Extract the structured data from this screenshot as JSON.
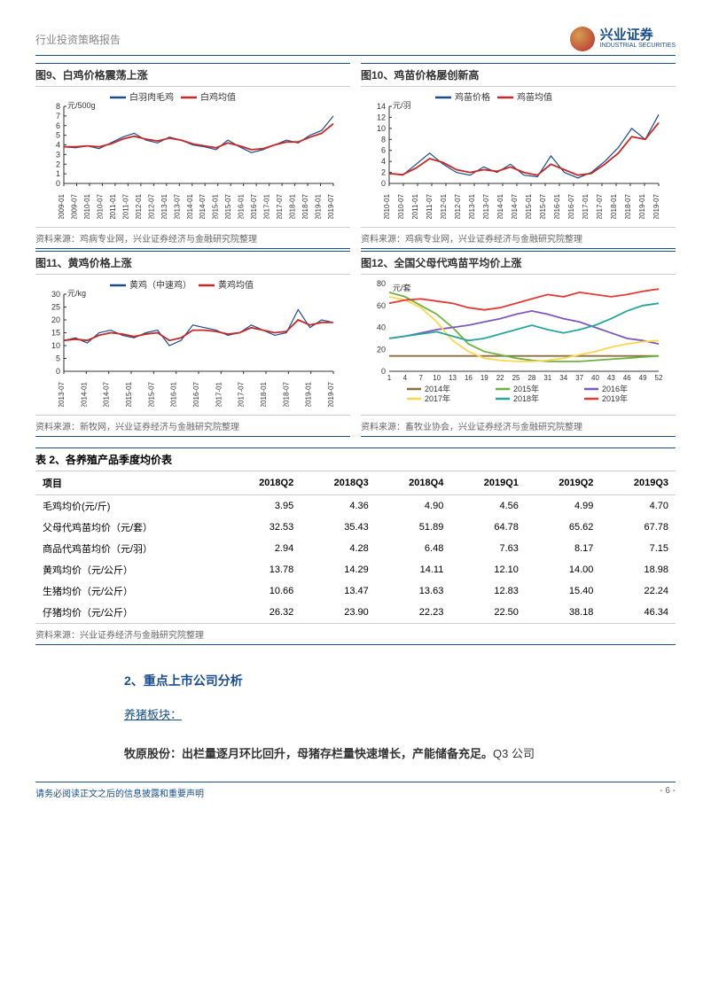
{
  "header": {
    "title": "行业投资策略报告",
    "logo_cn": "兴业证券",
    "logo_en": "INDUSTRIAL SECURITIES"
  },
  "fig9": {
    "title": "图9、白鸡价格震荡上涨",
    "legend": [
      {
        "label": "白羽肉毛鸡",
        "color": "#1a4d8c"
      },
      {
        "label": "白鸡均值",
        "color": "#c82828"
      }
    ],
    "y_unit": "元/500g",
    "ylim": [
      0,
      8
    ],
    "ytick_step": 1,
    "x_labels": [
      "2009-01",
      "2009-07",
      "2010-01",
      "2010-07",
      "2011-01",
      "2011-07",
      "2012-01",
      "2012-07",
      "2013-01",
      "2013-07",
      "2014-01",
      "2014-07",
      "2015-01",
      "2015-07",
      "2016-01",
      "2016-07",
      "2017-01",
      "2017-07",
      "2018-01",
      "2018-07",
      "2019-01",
      "2019-07"
    ],
    "series1": [
      3.8,
      3.7,
      3.9,
      3.6,
      4.2,
      4.8,
      5.2,
      4.5,
      4.2,
      4.8,
      4.5,
      4.0,
      3.8,
      3.5,
      4.5,
      3.8,
      3.2,
      3.5,
      4.0,
      4.5,
      4.2,
      5.0,
      5.5,
      7.0
    ],
    "series2": [
      3.8,
      3.8,
      3.9,
      3.8,
      4.1,
      4.6,
      4.9,
      4.6,
      4.4,
      4.7,
      4.5,
      4.1,
      3.9,
      3.7,
      4.2,
      3.9,
      3.5,
      3.6,
      4.0,
      4.3,
      4.3,
      4.8,
      5.2,
      6.2
    ],
    "source": "资料来源：鸡病专业网，兴业证券经济与金融研究院整理"
  },
  "fig10": {
    "title": "图10、鸡苗价格屡创新高",
    "legend": [
      {
        "label": "鸡苗价格",
        "color": "#1a4d8c"
      },
      {
        "label": "鸡苗均值",
        "color": "#c82828"
      }
    ],
    "y_unit": "元/羽",
    "ylim": [
      0,
      14
    ],
    "ytick_step": 2,
    "x_labels": [
      "2010-01",
      "2010-07",
      "2011-01",
      "2011-07",
      "2012-01",
      "2012-07",
      "2013-01",
      "2013-07",
      "2014-01",
      "2014-07",
      "2015-01",
      "2015-07",
      "2016-01",
      "2016-07",
      "2017-01",
      "2017-07",
      "2018-01",
      "2018-07",
      "2019-01",
      "2019-07"
    ],
    "series1": [
      1.8,
      1.5,
      3.5,
      5.5,
      3.5,
      2.0,
      1.5,
      3.0,
      2.0,
      3.5,
      1.5,
      1.2,
      5.0,
      2.0,
      1.0,
      2.0,
      4.0,
      6.5,
      10.0,
      8.0,
      12.5
    ],
    "series2": [
      1.8,
      1.6,
      2.8,
      4.5,
      3.8,
      2.5,
      2.0,
      2.5,
      2.2,
      3.0,
      2.0,
      1.5,
      3.5,
      2.5,
      1.5,
      1.8,
      3.5,
      5.5,
      8.5,
      8.0,
      11.0
    ],
    "source": "资料来源：鸡病专业网，兴业证券经济与金融研究院整理"
  },
  "fig11": {
    "title": "图11、黄鸡价格上涨",
    "legend": [
      {
        "label": "黄鸡（中速鸡）",
        "color": "#1a4d8c"
      },
      {
        "label": "黄鸡均值",
        "color": "#c82828"
      }
    ],
    "y_unit": "元/kg",
    "ylim": [
      0,
      30
    ],
    "ytick_step": 5,
    "x_labels": [
      "2013-07",
      "2014-01",
      "2014-07",
      "2015-01",
      "2015-07",
      "2016-01",
      "2016-07",
      "2017-01",
      "2017-07",
      "2018-01",
      "2018-07",
      "2019-01",
      "2019-07"
    ],
    "series1": [
      12,
      13,
      11,
      15,
      16,
      14,
      13,
      15,
      16,
      10,
      12,
      18,
      17,
      16,
      14,
      15,
      18,
      16,
      14,
      15,
      24,
      17,
      20,
      19
    ],
    "series2": [
      12,
      12.5,
      12,
      14,
      15,
      14.5,
      13.5,
      14.5,
      15,
      12,
      13,
      16,
      16,
      15.5,
      14.5,
      15,
      17,
      16,
      15,
      15.5,
      20,
      18,
      19,
      19
    ],
    "source": "资料来源：新牧网，兴业证券经济与金融研究院整理"
  },
  "fig12": {
    "title": "图12、全国父母代鸡苗平均价上涨",
    "y_unit": "元/套",
    "ylim": [
      0,
      80
    ],
    "ytick_step": 20,
    "x_labels": [
      "1",
      "4",
      "7",
      "10",
      "13",
      "16",
      "19",
      "22",
      "25",
      "28",
      "31",
      "34",
      "37",
      "40",
      "43",
      "46",
      "49",
      "52"
    ],
    "series": [
      {
        "label": "2014年",
        "color": "#8b6f3e",
        "data": [
          14,
          14,
          14,
          14,
          14,
          14,
          14,
          14,
          14,
          14,
          14,
          14,
          14,
          14,
          14,
          14,
          14,
          14
        ]
      },
      {
        "label": "2015年",
        "color": "#6db33f",
        "data": [
          72,
          68,
          60,
          52,
          40,
          25,
          18,
          15,
          12,
          10,
          9,
          9,
          9,
          10,
          11,
          12,
          13,
          14
        ]
      },
      {
        "label": "2016年",
        "color": "#7e57c2",
        "data": [
          30,
          32,
          35,
          38,
          40,
          42,
          45,
          48,
          52,
          55,
          52,
          48,
          45,
          40,
          35,
          30,
          28,
          25
        ]
      },
      {
        "label": "2017年",
        "color": "#ffd54f",
        "data": [
          68,
          65,
          58,
          45,
          28,
          18,
          12,
          10,
          9,
          9,
          10,
          12,
          15,
          18,
          22,
          25,
          27,
          28
        ]
      },
      {
        "label": "2018年",
        "color": "#26a69a",
        "data": [
          30,
          32,
          34,
          36,
          32,
          28,
          30,
          34,
          38,
          42,
          38,
          35,
          38,
          42,
          48,
          55,
          60,
          62
        ]
      },
      {
        "label": "2019年",
        "color": "#e53935",
        "data": [
          62,
          65,
          66,
          64,
          62,
          58,
          56,
          58,
          62,
          66,
          70,
          68,
          72,
          70,
          68,
          70,
          73,
          75
        ]
      }
    ],
    "source": "资料来源：畜牧业协会，兴业证券经济与金融研究院整理"
  },
  "table2": {
    "title": "表 2、各养殖产品季度均价表",
    "columns": [
      "项目",
      "2018Q2",
      "2018Q3",
      "2018Q4",
      "2019Q1",
      "2019Q2",
      "2019Q3"
    ],
    "rows": [
      [
        "毛鸡均价(元/斤)",
        "3.95",
        "4.36",
        "4.90",
        "4.56",
        "4.99",
        "4.70"
      ],
      [
        "父母代鸡苗均价（元/套）",
        "32.53",
        "35.43",
        "51.89",
        "64.78",
        "65.62",
        "67.78"
      ],
      [
        "商品代鸡苗均价（元/羽）",
        "2.94",
        "4.28",
        "6.48",
        "7.63",
        "8.17",
        "7.15"
      ],
      [
        "黄鸡均价（元/公斤）",
        "13.78",
        "14.29",
        "14.11",
        "12.10",
        "14.00",
        "18.98"
      ],
      [
        "生猪均价（元/公斤）",
        "10.66",
        "13.47",
        "13.63",
        "12.83",
        "15.40",
        "22.24"
      ],
      [
        "仔猪均价（元/公斤）",
        "26.32",
        "23.90",
        "22.23",
        "22.50",
        "38.18",
        "46.34"
      ]
    ],
    "source": "资料来源：兴业证券经济与金融研究院整理"
  },
  "section2": {
    "heading": "2、重点上市公司分析",
    "sub": "养猪板块：",
    "body_strong": "牧原股份：出栏量逐月环比回升，母猪存栏量快速增长，产能储备充足。",
    "body_tail": "Q3 公司"
  },
  "footer": {
    "left": "请务必阅读正文之后的信息披露和重要声明",
    "right": "- 6 -"
  },
  "style": {
    "axis_color": "#333",
    "grid_color": "#ddd"
  }
}
